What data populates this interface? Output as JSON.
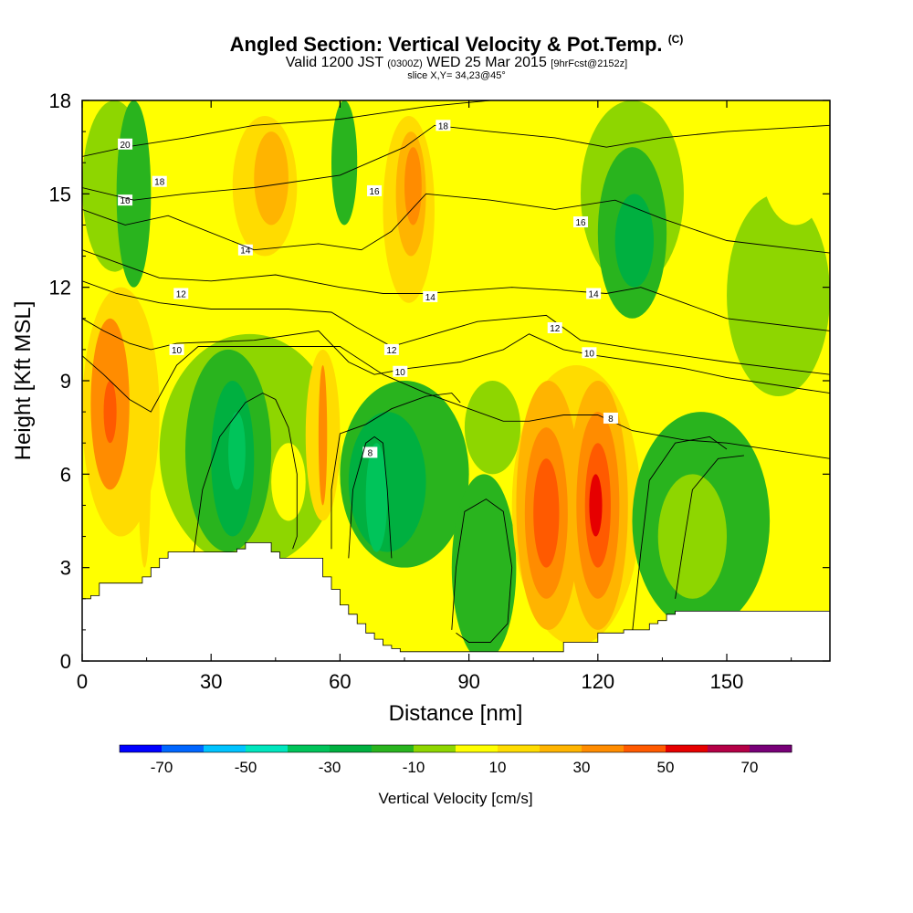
{
  "header": {
    "title": "Angled Section: Vertical Velocity & Pot.Temp.",
    "title_unit": "(C)",
    "valid_prefix": "Valid 1200 JST",
    "valid_utc": "(0300Z)",
    "valid_date": "WED 25 Mar 2015",
    "forecast": "[9hrFcst@2152z]",
    "slice": "slice X,Y= 34,23@45°"
  },
  "chart_data": {
    "type": "heatmap",
    "xlabel": "Distance [nm]",
    "ylabel": "Height [Kft MSL]",
    "xlim": [
      0,
      174
    ],
    "ylim": [
      0,
      18
    ],
    "x_ticks": [
      0,
      30,
      60,
      90,
      120,
      150
    ],
    "y_ticks": [
      0,
      3,
      6,
      9,
      12,
      15,
      18
    ],
    "colorbar": {
      "title": "Vertical Velocity [cm/s]",
      "tick_labels": [
        "-70",
        "-50",
        "-30",
        "-10",
        "10",
        "30",
        "50",
        "70"
      ],
      "bins": [
        -80,
        -70,
        -60,
        -50,
        -40,
        -30,
        -20,
        -10,
        0,
        10,
        20,
        30,
        40,
        50,
        60,
        70,
        80
      ],
      "colors": [
        "#0000ff",
        "#0066ff",
        "#00c3ff",
        "#00e6be",
        "#00c45a",
        "#00b040",
        "#29b41e",
        "#8ed600",
        "#ffff00",
        "#ffdc00",
        "#ffb400",
        "#ff8c00",
        "#ff5a00",
        "#e60000",
        "#b40046",
        "#780078"
      ]
    },
    "cells": [
      {
        "x0": 0,
        "x1": 15,
        "y0": 12.5,
        "y1": 18,
        "v": -5
      },
      {
        "x0": 0,
        "x1": 18,
        "y0": 4,
        "y1": 12,
        "v": 15
      },
      {
        "x0": 2,
        "x1": 11,
        "y0": 5.5,
        "y1": 11,
        "v": 35
      },
      {
        "x0": 5,
        "x1": 8,
        "y0": 7,
        "y1": 9,
        "v": 45
      },
      {
        "x0": 8,
        "x1": 16,
        "y0": 12,
        "y1": 18,
        "v": -15
      },
      {
        "x0": 13,
        "x1": 16,
        "y0": 3,
        "y1": 10,
        "v": 15
      },
      {
        "x0": 16,
        "x1": 25,
        "y0": 11,
        "y1": 17,
        "v": 5
      },
      {
        "x0": 16,
        "x1": 26,
        "y0": 3,
        "y1": 6,
        "v": 5
      },
      {
        "x0": 18,
        "x1": 60,
        "y0": 3,
        "y1": 10.5,
        "v": -5
      },
      {
        "x0": 24,
        "x1": 44,
        "y0": 3.5,
        "y1": 10,
        "v": -15
      },
      {
        "x0": 30,
        "x1": 40,
        "y0": 4,
        "y1": 9,
        "v": -25
      },
      {
        "x0": 34,
        "x1": 38,
        "y0": 5.5,
        "y1": 8,
        "v": -35
      },
      {
        "x0": 26,
        "x1": 37,
        "y0": 13,
        "y1": 18,
        "v": 5
      },
      {
        "x0": 35,
        "x1": 50,
        "y0": 13,
        "y1": 17.5,
        "v": 15
      },
      {
        "x0": 40,
        "x1": 48,
        "y0": 14,
        "y1": 17,
        "v": 25
      },
      {
        "x0": 44,
        "x1": 52,
        "y0": 4.5,
        "y1": 7,
        "v": 5
      },
      {
        "x0": 52,
        "x1": 60,
        "y0": 4.5,
        "y1": 10,
        "v": 15
      },
      {
        "x0": 55,
        "x1": 57,
        "y0": 5,
        "y1": 9.5,
        "v": 35
      },
      {
        "x0": 58,
        "x1": 64,
        "y0": 14,
        "y1": 18,
        "v": -15
      },
      {
        "x0": 60,
        "x1": 90,
        "y0": 3,
        "y1": 9,
        "v": -15
      },
      {
        "x0": 62,
        "x1": 80,
        "y0": 3.5,
        "y1": 8,
        "v": -25
      },
      {
        "x0": 66,
        "x1": 71,
        "y0": 3.5,
        "y1": 7,
        "v": -35
      },
      {
        "x0": 67,
        "x1": 86,
        "y0": 12,
        "y1": 16.5,
        "v": 5
      },
      {
        "x0": 70,
        "x1": 82,
        "y0": 11.5,
        "y1": 17.5,
        "v": 15
      },
      {
        "x0": 73,
        "x1": 80,
        "y0": 13,
        "y1": 17,
        "v": 25
      },
      {
        "x0": 75,
        "x1": 79,
        "y0": 14,
        "y1": 16.5,
        "v": 35
      },
      {
        "x0": 86,
        "x1": 101,
        "y0": 0,
        "y1": 6,
        "v": -15
      },
      {
        "x0": 89,
        "x1": 102,
        "y0": 6,
        "y1": 9,
        "v": -5
      },
      {
        "x0": 100,
        "x1": 130,
        "y0": 0.5,
        "y1": 9.5,
        "v": 15
      },
      {
        "x0": 101,
        "x1": 116,
        "y0": 1,
        "y1": 9,
        "v": 25
      },
      {
        "x0": 103,
        "x1": 113,
        "y0": 2,
        "y1": 7.5,
        "v": 35
      },
      {
        "x0": 105,
        "x1": 111,
        "y0": 3,
        "y1": 6.5,
        "v": 45
      },
      {
        "x0": 113,
        "x1": 127,
        "y0": 1,
        "y1": 9,
        "v": 25
      },
      {
        "x0": 115,
        "x1": 125,
        "y0": 2,
        "y1": 8,
        "v": 35
      },
      {
        "x0": 117,
        "x1": 123,
        "y0": 3,
        "y1": 7,
        "v": 45
      },
      {
        "x0": 118,
        "x1": 121,
        "y0": 4,
        "y1": 6,
        "v": 55
      },
      {
        "x0": 116,
        "x1": 140,
        "y0": 12,
        "y1": 18,
        "v": -5
      },
      {
        "x0": 120,
        "x1": 136,
        "y0": 11,
        "y1": 16.5,
        "v": -15
      },
      {
        "x0": 124,
        "x1": 133,
        "y0": 12,
        "y1": 15,
        "v": -25
      },
      {
        "x0": 128,
        "x1": 160,
        "y0": 1,
        "y1": 8,
        "v": -15
      },
      {
        "x0": 134,
        "x1": 150,
        "y0": 2,
        "y1": 6,
        "v": -5
      },
      {
        "x0": 150,
        "x1": 174,
        "y0": 8.5,
        "y1": 15,
        "v": -5
      },
      {
        "x0": 158,
        "x1": 174,
        "y0": 14,
        "y1": 18,
        "v": 5
      }
    ],
    "terrain_height": [
      2,
      2.1,
      2.5,
      2.5,
      2.5,
      2.5,
      2.5,
      2.7,
      3,
      3.3,
      3.5,
      3.5,
      3.5,
      3.5,
      3.5,
      3.5,
      3.5,
      3.5,
      3.6,
      3.8,
      3.8,
      3.8,
      3.5,
      3.3,
      3.3,
      3.3,
      3.3,
      3.3,
      2.7,
      2.3,
      1.8,
      1.5,
      1.2,
      0.9,
      0.7,
      0.5,
      0.4,
      0.3,
      0.3,
      0.3,
      0.3,
      0.3,
      0.3,
      0.3,
      0.3,
      0.3,
      0.3,
      0.3,
      0.3,
      0.3,
      0.3,
      0.3,
      0.3,
      0.3,
      0.3,
      0.3,
      0.6,
      0.6,
      0.6,
      0.6,
      0.9,
      0.9,
      0.9,
      1.0,
      1.0,
      1.0,
      1.2,
      1.3,
      1.5,
      1.6,
      1.6,
      1.6,
      1.6,
      1.6,
      1.6,
      1.6,
      1.6,
      1.6,
      1.6,
      1.6,
      1.6,
      1.6,
      1.6,
      1.6,
      1.6,
      1.6,
      1.6,
      1.6
    ],
    "pot_temp_contours": [
      {
        "level": 8,
        "points": [
          [
            0,
            9.8
          ],
          [
            5,
            9.2
          ],
          [
            11,
            8.4
          ],
          [
            16,
            8.0
          ],
          [
            22,
            9.5
          ],
          [
            27,
            10.1
          ],
          [
            40,
            10.1
          ],
          [
            60,
            10.1
          ],
          [
            70,
            9.2
          ],
          [
            80,
            8.6
          ],
          [
            90,
            8.1
          ],
          [
            98,
            7.7
          ],
          [
            104,
            7.7
          ],
          [
            112,
            7.9
          ],
          [
            120,
            7.9
          ],
          [
            128,
            7.4
          ],
          [
            140,
            7.1
          ],
          [
            150,
            7.0
          ],
          [
            174,
            6.5
          ]
        ],
        "labels": [
          [
            67,
            6.7,
            "8"
          ],
          [
            123,
            7.8,
            "8"
          ]
        ]
      },
      {
        "level": 10,
        "points": [
          [
            0,
            11.0
          ],
          [
            5,
            10.6
          ],
          [
            11,
            10.2
          ],
          [
            16,
            10.0
          ],
          [
            22,
            10.2
          ],
          [
            40,
            10.3
          ],
          [
            55,
            10.6
          ],
          [
            62,
            9.6
          ],
          [
            68,
            9.2
          ],
          [
            76,
            9.4
          ],
          [
            88,
            9.6
          ],
          [
            98,
            10.0
          ],
          [
            104,
            10.5
          ],
          [
            112,
            10.0
          ],
          [
            120,
            9.8
          ],
          [
            130,
            9.6
          ],
          [
            140,
            9.4
          ],
          [
            150,
            9.1
          ],
          [
            174,
            8.6
          ]
        ],
        "labels": [
          [
            22,
            10.0,
            "10"
          ],
          [
            74,
            9.3,
            "10"
          ],
          [
            118,
            9.9,
            "10"
          ]
        ]
      },
      {
        "level": 12,
        "points": [
          [
            0,
            12.2
          ],
          [
            8,
            11.8
          ],
          [
            18,
            11.5
          ],
          [
            30,
            11.3
          ],
          [
            48,
            11.3
          ],
          [
            58,
            11.2
          ],
          [
            64,
            10.7
          ],
          [
            72,
            10.1
          ],
          [
            82,
            10.5
          ],
          [
            92,
            10.9
          ],
          [
            100,
            11.0
          ],
          [
            108,
            11.1
          ],
          [
            116,
            10.3
          ],
          [
            130,
            10.0
          ],
          [
            150,
            9.6
          ],
          [
            174,
            9.2
          ]
        ],
        "labels": [
          [
            23,
            11.8,
            "12"
          ],
          [
            72,
            10.0,
            "12"
          ],
          [
            110,
            10.7,
            "12"
          ]
        ]
      },
      {
        "level": 14,
        "points": [
          [
            0,
            13.2
          ],
          [
            8,
            12.8
          ],
          [
            18,
            12.3
          ],
          [
            30,
            12.2
          ],
          [
            45,
            12.4
          ],
          [
            60,
            12.0
          ],
          [
            70,
            11.8
          ],
          [
            80,
            11.8
          ],
          [
            90,
            11.9
          ],
          [
            100,
            12.0
          ],
          [
            112,
            11.9
          ],
          [
            122,
            11.8
          ],
          [
            130,
            12.0
          ],
          [
            140,
            11.5
          ],
          [
            150,
            11.0
          ],
          [
            174,
            10.6
          ]
        ],
        "labels": [
          [
            38,
            13.2,
            "14"
          ],
          [
            81,
            11.7,
            "14"
          ],
          [
            119,
            11.8,
            "14"
          ]
        ]
      },
      {
        "level": 16,
        "points": [
          [
            0,
            14.5
          ],
          [
            10,
            14.0
          ],
          [
            20,
            14.3
          ],
          [
            40,
            13.2
          ],
          [
            55,
            13.4
          ],
          [
            65,
            13.2
          ],
          [
            72,
            13.8
          ],
          [
            80,
            15.0
          ],
          [
            95,
            14.8
          ],
          [
            110,
            14.5
          ],
          [
            124,
            14.8
          ],
          [
            135,
            14.2
          ],
          [
            150,
            13.5
          ],
          [
            174,
            13.1
          ]
        ],
        "labels": [
          [
            10,
            14.8,
            "16"
          ],
          [
            68,
            15.1,
            "16"
          ],
          [
            116,
            14.1,
            "16"
          ]
        ]
      },
      {
        "level": 18,
        "points": [
          [
            0,
            15.2
          ],
          [
            12,
            14.8
          ],
          [
            24,
            15.0
          ],
          [
            40,
            15.2
          ],
          [
            60,
            15.6
          ],
          [
            75,
            16.5
          ],
          [
            82,
            17.2
          ],
          [
            95,
            17.0
          ],
          [
            110,
            16.8
          ],
          [
            122,
            16.5
          ],
          [
            135,
            16.8
          ],
          [
            150,
            17.0
          ],
          [
            174,
            17.2
          ]
        ],
        "labels": [
          [
            18,
            15.4,
            "18"
          ],
          [
            84,
            17.2,
            "18"
          ]
        ]
      },
      {
        "level": 20,
        "points": [
          [
            0,
            16.2
          ],
          [
            10,
            16.5
          ],
          [
            24,
            16.8
          ],
          [
            40,
            17.2
          ],
          [
            60,
            17.4
          ],
          [
            80,
            17.8
          ],
          [
            95,
            18.0
          ]
        ],
        "labels": [
          [
            10,
            16.6,
            "20"
          ]
        ]
      }
    ],
    "extra_contours": [
      {
        "points": [
          [
            26,
            3.5
          ],
          [
            28,
            5.5
          ],
          [
            32,
            7.2
          ],
          [
            38,
            8.3
          ],
          [
            42,
            8.6
          ],
          [
            45,
            8.4
          ],
          [
            48,
            7.5
          ],
          [
            50,
            6.0
          ],
          [
            50,
            4.0
          ],
          [
            49,
            3.6
          ]
        ]
      },
      {
        "points": [
          [
            58,
            3.6
          ],
          [
            58,
            5.5
          ],
          [
            60,
            7.3
          ],
          [
            66,
            7.6
          ],
          [
            72,
            8.1
          ],
          [
            80,
            8.5
          ],
          [
            86,
            8.6
          ],
          [
            88,
            8.3
          ]
        ]
      },
      {
        "points": [
          [
            62,
            3.3
          ],
          [
            63,
            5.5
          ],
          [
            66,
            7.0
          ],
          [
            68,
            7.2
          ],
          [
            70,
            7.0
          ],
          [
            71,
            5.5
          ],
          [
            72,
            3.3
          ]
        ]
      },
      {
        "points": [
          [
            86,
            1.0
          ],
          [
            87,
            3.0
          ],
          [
            89,
            4.8
          ],
          [
            94,
            5.2
          ],
          [
            98,
            4.8
          ],
          [
            100,
            3.0
          ],
          [
            99,
            1.2
          ],
          [
            95,
            0.6
          ],
          [
            90,
            0.6
          ],
          [
            87,
            0.9
          ]
        ]
      },
      {
        "points": [
          [
            128,
            0.9
          ],
          [
            130,
            3.5
          ],
          [
            132,
            5.8
          ],
          [
            138,
            7.0
          ],
          [
            146,
            7.2
          ],
          [
            150,
            6.8
          ]
        ]
      },
      {
        "points": [
          [
            138,
            2.0
          ],
          [
            140,
            3.8
          ],
          [
            142,
            5.5
          ],
          [
            148,
            6.5
          ],
          [
            154,
            6.6
          ]
        ]
      }
    ]
  }
}
